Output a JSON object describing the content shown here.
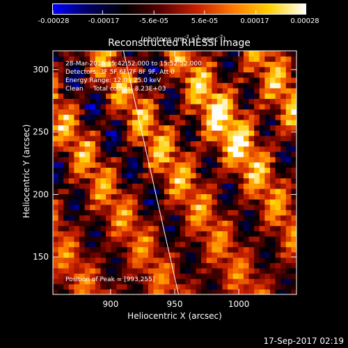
{
  "colorbar": {
    "ticks": [
      "-0.00028",
      "-0.00017",
      "-5.6e-05",
      "5.6e-05",
      "0.00017",
      "0.00028"
    ],
    "tick_values": [
      -0.00028,
      -0.00017,
      -5.6e-05,
      5.6e-05,
      0.00017,
      0.00028
    ],
    "range": [
      -0.00028,
      0.00028
    ],
    "unit_label": "(photons cm",
    "unit_sup1": "-2",
    "unit_mid": " s",
    "unit_sup2": "-1",
    "unit_end": " asec",
    "unit_sup3": "-2",
    "unit_close": ")",
    "colors": [
      "#0000ff",
      "#000060",
      "#000000",
      "#5a0000",
      "#c82000",
      "#ff7a00",
      "#ffd000",
      "#ffffff"
    ]
  },
  "chart_data": {
    "type": "heatmap",
    "title": "Reconstructed RHESSI Image",
    "xlabel": "Heliocentric X (arcsec)",
    "ylabel": "Heliocentric Y (arcsec)",
    "xlim": [
      855,
      1045
    ],
    "ylim": [
      120,
      315
    ],
    "xticks": [
      900,
      950,
      1000
    ],
    "yticks": [
      150,
      200,
      250,
      300
    ],
    "annotations": [
      "28-Mar-2015 15:42:52.000 to 15:52:52.000",
      "Detectors: 3F 5F 6F 7F 8F 9F, Att 0",
      "Energy Range: 12.0 - 25.0 keV",
      "Clean     Total counts: 8.23E+03"
    ],
    "peak_label": "Position of Peak = [993,255]",
    "peak": [
      993,
      255
    ],
    "limb_line": [
      [
        910,
        315
      ],
      [
        953,
        120
      ]
    ],
    "grid": false
  },
  "footer": {
    "timestamp": "17-Sep-2017 02:19"
  }
}
